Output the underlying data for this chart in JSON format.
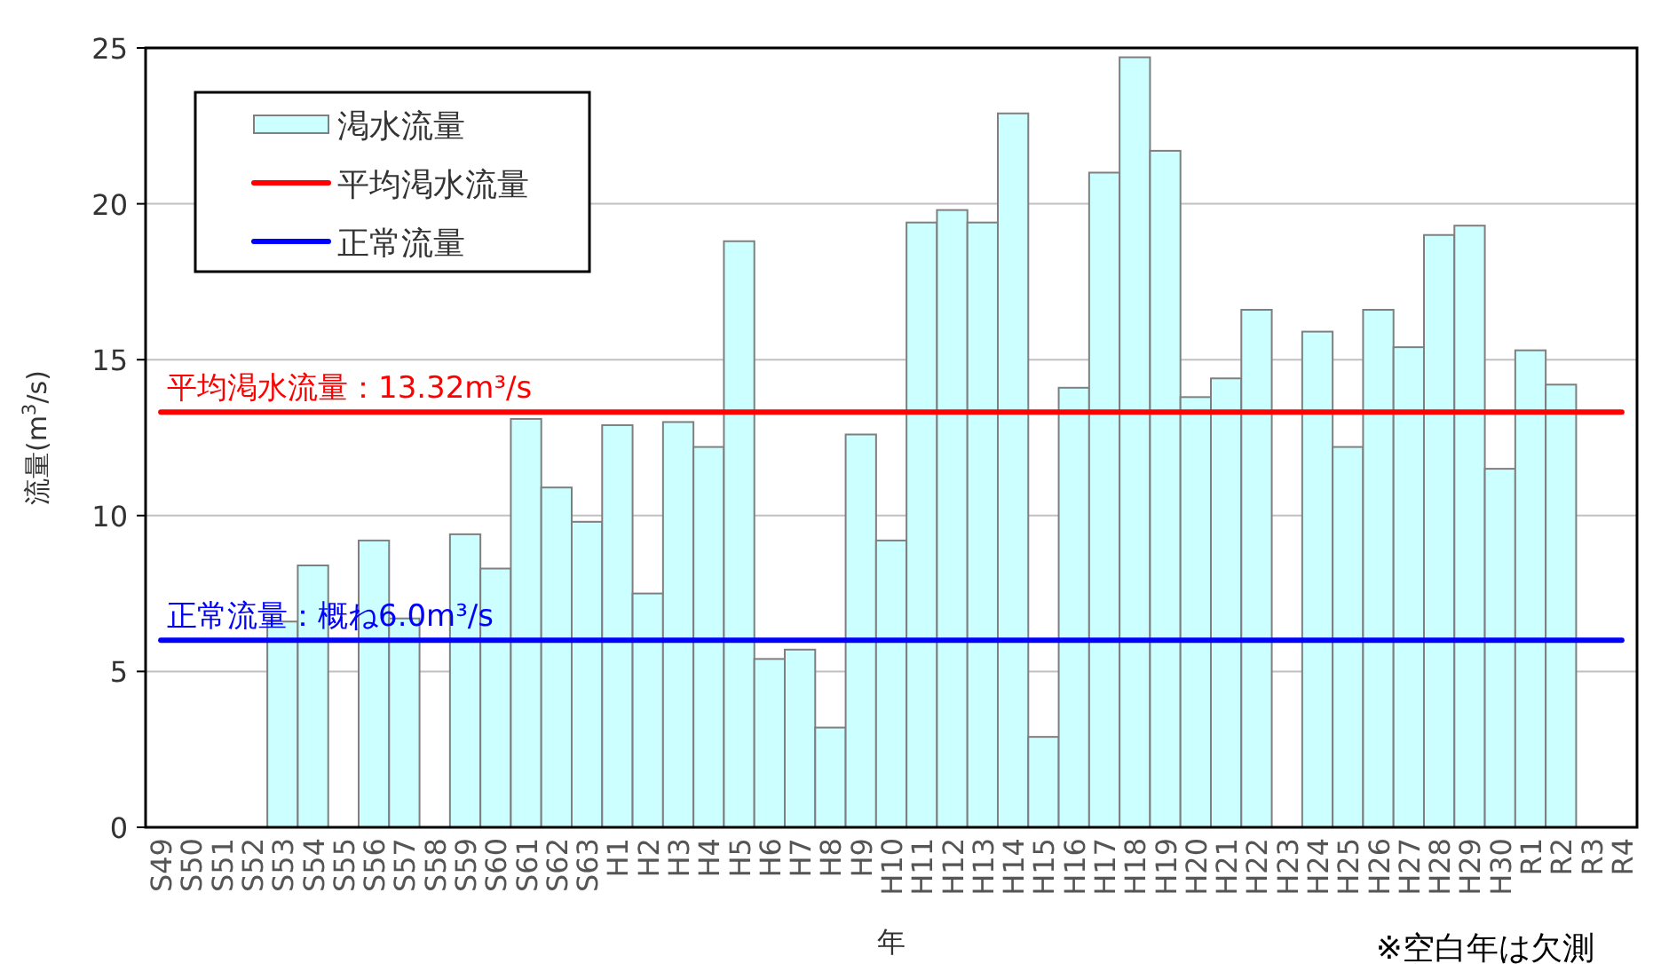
{
  "chart_data": {
    "type": "bar",
    "xlabel": "年",
    "ylabel": "流量(m$^{3}$/s)",
    "categories": [
      "S49",
      "S50",
      "S51",
      "S52",
      "S53",
      "S54",
      "S55",
      "S56",
      "S57",
      "S58",
      "S59",
      "S60",
      "S61",
      "S62",
      "S63",
      "H1",
      "H2",
      "H3",
      "H4",
      "H5",
      "H6",
      "H7",
      "H8",
      "H9",
      "H10",
      "H11",
      "H12",
      "H13",
      "H14",
      "H15",
      "H16",
      "H17",
      "H18",
      "H19",
      "H20",
      "H21",
      "H22",
      "H23",
      "H24",
      "H25",
      "H26",
      "H27",
      "H28",
      "H29",
      "H30",
      "R1",
      "R2",
      "R3",
      "R4"
    ],
    "series": [
      {
        "name": "渇水流量",
        "color": "#ccffff",
        "values": [
          null,
          null,
          null,
          null,
          6.6,
          8.4,
          null,
          9.2,
          6.7,
          null,
          9.4,
          8.3,
          13.1,
          10.9,
          9.8,
          12.9,
          7.5,
          13.0,
          12.2,
          18.8,
          5.4,
          5.7,
          3.2,
          12.6,
          9.2,
          19.4,
          19.8,
          19.4,
          22.9,
          2.9,
          14.1,
          21.0,
          24.7,
          21.7,
          13.8,
          14.4,
          16.6,
          null,
          15.9,
          12.2,
          16.6,
          15.4,
          19.0,
          19.3,
          11.5,
          15.3,
          14.2,
          null,
          null
        ]
      },
      {
        "type": "line",
        "name": "平均渇水流量",
        "color": "#ff0000",
        "values": [
          13.32,
          13.32,
          13.32,
          13.32,
          13.32,
          13.32,
          13.32,
          13.32,
          13.32,
          13.32,
          13.32,
          13.32,
          13.32,
          13.32,
          13.32,
          13.32,
          13.32,
          13.32,
          13.32,
          13.32,
          13.32,
          13.32,
          13.32,
          13.32,
          13.32,
          13.32,
          13.32,
          13.32,
          13.32,
          13.32,
          13.32,
          13.32,
          13.32,
          13.32,
          13.32,
          13.32,
          13.32,
          13.32,
          13.32,
          13.32,
          13.32,
          13.32,
          13.32,
          13.32,
          13.32,
          13.32,
          13.32,
          13.32,
          13.32
        ]
      },
      {
        "type": "line",
        "name": "正常流量",
        "color": "#0000ff",
        "values": [
          6.0,
          6.0,
          6.0,
          6.0,
          6.0,
          6.0,
          6.0,
          6.0,
          6.0,
          6.0,
          6.0,
          6.0,
          6.0,
          6.0,
          6.0,
          6.0,
          6.0,
          6.0,
          6.0,
          6.0,
          6.0,
          6.0,
          6.0,
          6.0,
          6.0,
          6.0,
          6.0,
          6.0,
          6.0,
          6.0,
          6.0,
          6.0,
          6.0,
          6.0,
          6.0,
          6.0,
          6.0,
          6.0,
          6.0,
          6.0,
          6.0,
          6.0,
          6.0,
          6.0,
          6.0,
          6.0,
          6.0,
          6.0,
          6.0
        ]
      }
    ],
    "ylim": [
      0,
      25
    ],
    "yticks": [
      0,
      5,
      10,
      15,
      20,
      25
    ],
    "grid": "y",
    "legend": "top left",
    "annotations": [
      {
        "text": "平均渇水流量：13.32m³/s",
        "x": "S49",
        "y": 13.32
      },
      {
        "text": "正常流量：概ね6.0m³/s",
        "x": "S49",
        "y": 6.0
      },
      "※空白年は欠測"
    ]
  }
}
